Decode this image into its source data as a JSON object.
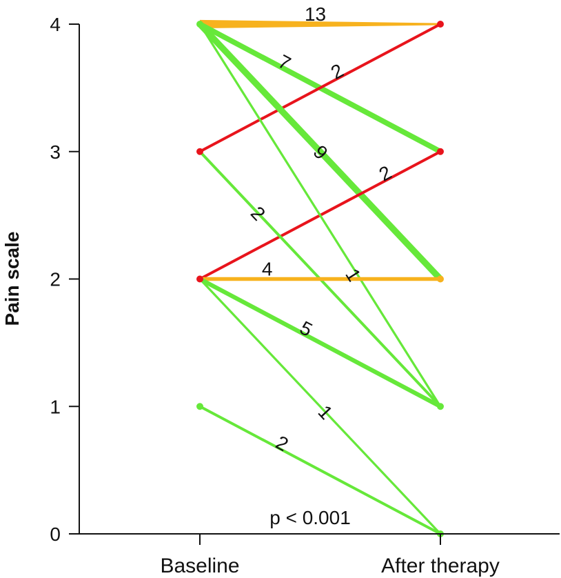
{
  "chart_data": {
    "type": "line",
    "title": "",
    "xlabel": "",
    "ylabel": "Pain scale",
    "categories": [
      "Baseline",
      "After therapy"
    ],
    "ylim": [
      0,
      4
    ],
    "yticks": [
      "0",
      "1",
      "2",
      "3",
      "4"
    ],
    "grid": false,
    "colors": {
      "improved": "#66e83a",
      "unchanged": "#f7b21e",
      "worsened": "#e8141c"
    },
    "transitions": [
      {
        "from": 4,
        "to": 4,
        "count": 13,
        "status": "unchanged"
      },
      {
        "from": 4,
        "to": 3,
        "count": 7,
        "status": "improved"
      },
      {
        "from": 3,
        "to": 4,
        "count": 2,
        "status": "worsened"
      },
      {
        "from": 4,
        "to": 2,
        "count": 9,
        "status": "improved"
      },
      {
        "from": 2,
        "to": 3,
        "count": 2,
        "status": "worsened"
      },
      {
        "from": 3,
        "to": 1,
        "count": 2,
        "status": "improved"
      },
      {
        "from": 4,
        "to": 1,
        "count": 1,
        "status": "improved"
      },
      {
        "from": 2,
        "to": 2,
        "count": 4,
        "status": "unchanged"
      },
      {
        "from": 2,
        "to": 1,
        "count": 5,
        "status": "improved"
      },
      {
        "from": 2,
        "to": 0,
        "count": 1,
        "status": "improved"
      },
      {
        "from": 1,
        "to": 0,
        "count": 2,
        "status": "improved"
      }
    ],
    "annotation": "p < 0.001"
  }
}
